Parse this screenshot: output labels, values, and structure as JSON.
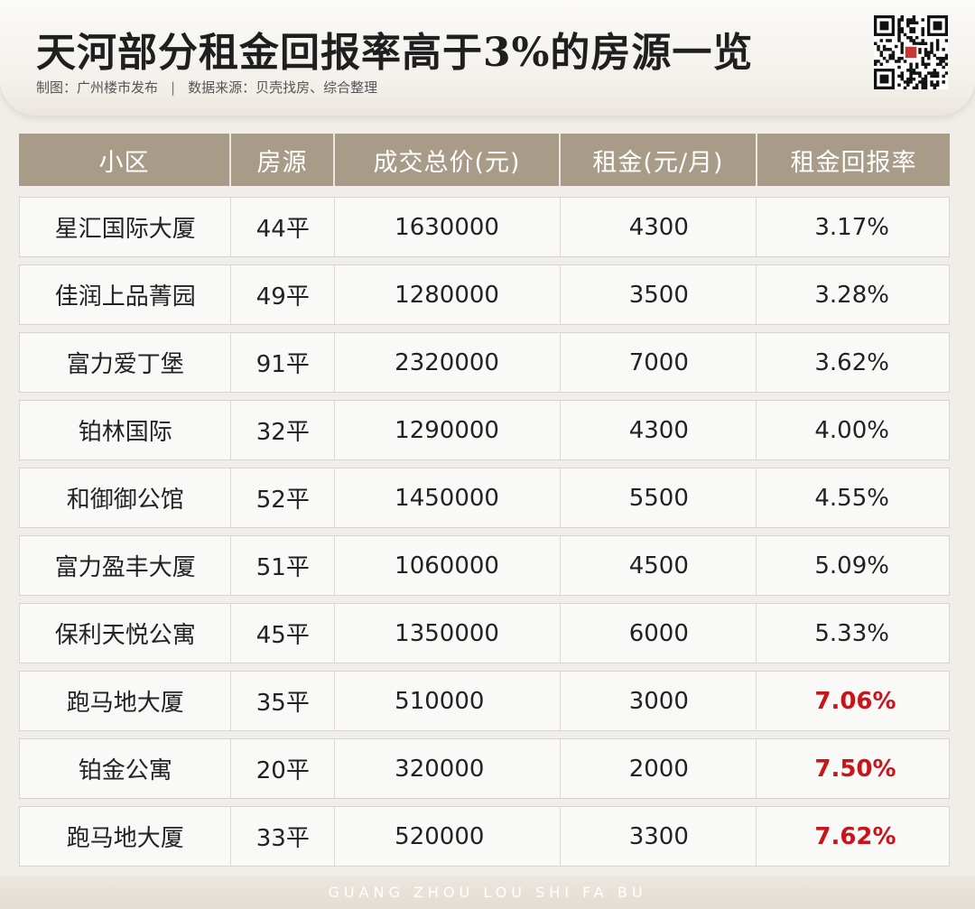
{
  "header": {
    "title": "天河部分租金回报率高于3%的房源一览",
    "credit": "制图：广州楼市发布",
    "source": "数据来源：贝壳找房、综合整理",
    "qr_icon": "qr-code-icon"
  },
  "table": {
    "columns": [
      "小区",
      "房源",
      "成交总价(元)",
      "租金(元/月)",
      "租金回报率"
    ],
    "rows": [
      {
        "community": "星汇国际大厦",
        "area": "44平",
        "price": "1630000",
        "rent": "4300",
        "rate": "3.17%",
        "highlight": false
      },
      {
        "community": "佳润上品菁园",
        "area": "49平",
        "price": "1280000",
        "rent": "3500",
        "rate": "3.28%",
        "highlight": false
      },
      {
        "community": "富力爱丁堡",
        "area": "91平",
        "price": "2320000",
        "rent": "7000",
        "rate": "3.62%",
        "highlight": false
      },
      {
        "community": "铂林国际",
        "area": "32平",
        "price": "1290000",
        "rent": "4300",
        "rate": "4.00%",
        "highlight": false
      },
      {
        "community": "和御御公馆",
        "area": "52平",
        "price": "1450000",
        "rent": "5500",
        "rate": "4.55%",
        "highlight": false
      },
      {
        "community": "富力盈丰大厦",
        "area": "51平",
        "price": "1060000",
        "rent": "4500",
        "rate": "5.09%",
        "highlight": false
      },
      {
        "community": "保利天悦公寓",
        "area": "45平",
        "price": "1350000",
        "rent": "6000",
        "rate": "5.33%",
        "highlight": false
      },
      {
        "community": "跑马地大厦",
        "area": "35平",
        "price": "510000",
        "rent": "3000",
        "rate": "7.06%",
        "highlight": true
      },
      {
        "community": "铂金公寓",
        "area": "20平",
        "price": "320000",
        "rent": "2000",
        "rate": "7.50%",
        "highlight": true
      },
      {
        "community": "跑马地大厦",
        "area": "33平",
        "price": "520000",
        "rent": "3300",
        "rate": "7.62%",
        "highlight": true
      }
    ]
  },
  "footer": {
    "text": "GUANG ZHOU LOU SHI FA BU"
  },
  "colors": {
    "header_bg": "#a89b88",
    "highlight": "#c8141b"
  }
}
